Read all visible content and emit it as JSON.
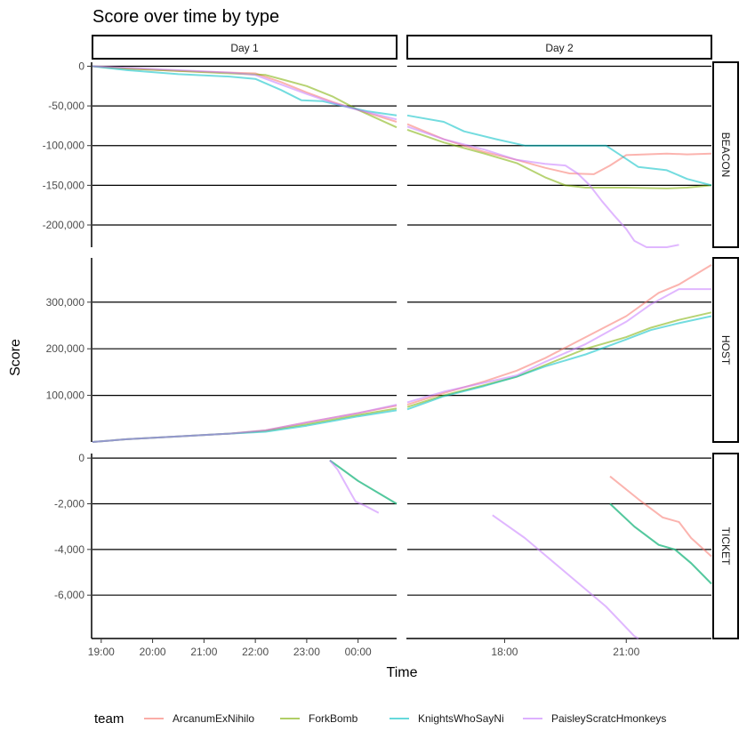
{
  "chart_data": {
    "type": "line",
    "title": "Score over time by type",
    "xlabel": "Time",
    "ylabel": "Score",
    "legend_title": "team",
    "legend_position": "bottom",
    "grid": "major horizontal lines",
    "columns": [
      {
        "label": "Day 1",
        "xlim": [
          18.83,
          24.75
        ],
        "ticks": [
          {
            "v": 19,
            "label": "19:00"
          },
          {
            "v": 20,
            "label": "20:00"
          },
          {
            "v": 21,
            "label": "21:00"
          },
          {
            "v": 22,
            "label": "22:00"
          },
          {
            "v": 23,
            "label": "23:00"
          },
          {
            "v": 24,
            "label": "00:00"
          }
        ]
      },
      {
        "label": "Day 2",
        "xlim": [
          15.6,
          23.1
        ],
        "ticks": [
          {
            "v": 18,
            "label": "18:00"
          },
          {
            "v": 21,
            "label": "21:00"
          }
        ]
      }
    ],
    "rows": [
      {
        "label": "BEACON",
        "ylim": [
          -228000,
          5000
        ],
        "ticks": [
          {
            "v": 0,
            "label": "0"
          },
          {
            "v": -50000,
            "label": "-50,000"
          },
          {
            "v": -100000,
            "label": "-100,000"
          },
          {
            "v": -150000,
            "label": "-150,000"
          },
          {
            "v": -200000,
            "label": "-200,000"
          }
        ]
      },
      {
        "label": "HOST",
        "ylim": [
          0,
          395000
        ],
        "ticks": [
          {
            "v": 100000,
            "label": "100,000"
          },
          {
            "v": 200000,
            "label": "200,000"
          },
          {
            "v": 300000,
            "label": "300,000"
          }
        ]
      },
      {
        "label": "TICKET",
        "ylim": [
          -7900,
          200
        ],
        "ticks": [
          {
            "v": 0,
            "label": "0"
          },
          {
            "v": -2000,
            "label": "-2,000"
          },
          {
            "v": -4000,
            "label": "-4,000"
          },
          {
            "v": -6000,
            "label": "-6,000"
          }
        ]
      }
    ],
    "teams": [
      {
        "name": "ArcanumExNihilo",
        "color": "#F8766D"
      },
      {
        "name": "ForkBomb",
        "color": "#7CAE00"
      },
      {
        "name": "KnightsWhoSayNi",
        "color": "#00BFC4"
      },
      {
        "name": "PaisleyScratcHmonkeys",
        "color": "#C77CFF"
      }
    ],
    "series": [
      {
        "team": "ArcanumExNihilo",
        "row": 0,
        "col": 0,
        "points": [
          [
            18.83,
            0
          ],
          [
            19.5,
            -3000
          ],
          [
            20.5,
            -6000
          ],
          [
            21.5,
            -8000
          ],
          [
            22.0,
            -9000
          ],
          [
            22.5,
            -20000
          ],
          [
            23.0,
            -33000
          ],
          [
            23.5,
            -45000
          ],
          [
            24.0,
            -55000
          ],
          [
            24.75,
            -70000
          ]
        ]
      },
      {
        "team": "ForkBomb",
        "row": 0,
        "col": 0,
        "points": [
          [
            18.83,
            0
          ],
          [
            19.5,
            -3000
          ],
          [
            20.5,
            -6000
          ],
          [
            21.5,
            -9000
          ],
          [
            22.2,
            -11000
          ],
          [
            22.6,
            -18000
          ],
          [
            23.0,
            -25000
          ],
          [
            23.5,
            -38000
          ],
          [
            24.0,
            -55000
          ],
          [
            24.75,
            -77000
          ]
        ]
      },
      {
        "team": "KnightsWhoSayNi",
        "row": 0,
        "col": 0,
        "points": [
          [
            18.83,
            0
          ],
          [
            19.5,
            -5000
          ],
          [
            20.5,
            -10000
          ],
          [
            21.5,
            -13000
          ],
          [
            22.0,
            -16000
          ],
          [
            22.5,
            -30000
          ],
          [
            22.9,
            -43000
          ],
          [
            23.3,
            -44000
          ],
          [
            23.7,
            -50000
          ],
          [
            24.2,
            -57000
          ],
          [
            24.75,
            -62000
          ]
        ]
      },
      {
        "team": "PaisleyScratcHmonkeys",
        "row": 0,
        "col": 0,
        "points": [
          [
            18.83,
            0
          ],
          [
            19.5,
            -2000
          ],
          [
            20.5,
            -5000
          ],
          [
            21.5,
            -8000
          ],
          [
            22.0,
            -11000
          ],
          [
            22.5,
            -23000
          ],
          [
            23.0,
            -35000
          ],
          [
            23.5,
            -46000
          ],
          [
            24.0,
            -55000
          ],
          [
            24.75,
            -67000
          ]
        ]
      },
      {
        "team": "ArcanumExNihilo",
        "row": 0,
        "col": 1,
        "points": [
          [
            15.6,
            -73000
          ],
          [
            16.5,
            -92000
          ],
          [
            17.5,
            -108000
          ],
          [
            18.3,
            -118000
          ],
          [
            19.0,
            -128000
          ],
          [
            19.6,
            -135000
          ],
          [
            20.2,
            -136000
          ],
          [
            20.6,
            -125000
          ],
          [
            21.0,
            -112000
          ],
          [
            22.0,
            -110000
          ],
          [
            22.5,
            -111000
          ],
          [
            23.1,
            -110000
          ]
        ]
      },
      {
        "team": "ForkBomb",
        "row": 0,
        "col": 1,
        "points": [
          [
            15.6,
            -80000
          ],
          [
            16.5,
            -96000
          ],
          [
            17.5,
            -110000
          ],
          [
            18.3,
            -122000
          ],
          [
            19.0,
            -140000
          ],
          [
            19.5,
            -150000
          ],
          [
            20.0,
            -153000
          ],
          [
            21.0,
            -153000
          ],
          [
            22.0,
            -154000
          ],
          [
            22.5,
            -153000
          ],
          [
            23.1,
            -150000
          ]
        ]
      },
      {
        "team": "KnightsWhoSayNi",
        "row": 0,
        "col": 1,
        "points": [
          [
            15.6,
            -62000
          ],
          [
            16.5,
            -70000
          ],
          [
            17.0,
            -82000
          ],
          [
            17.8,
            -92000
          ],
          [
            18.5,
            -100000
          ],
          [
            20.5,
            -100000
          ],
          [
            20.8,
            -110000
          ],
          [
            21.3,
            -127000
          ],
          [
            22.0,
            -131000
          ],
          [
            22.5,
            -142000
          ],
          [
            23.1,
            -150000
          ]
        ]
      },
      {
        "team": "PaisleyScratcHmonkeys",
        "row": 0,
        "col": 1,
        "points": [
          [
            15.6,
            -76000
          ],
          [
            16.5,
            -92000
          ],
          [
            17.5,
            -105000
          ],
          [
            18.3,
            -118000
          ],
          [
            19.0,
            -123000
          ],
          [
            19.5,
            -125000
          ],
          [
            19.8,
            -135000
          ],
          [
            20.1,
            -150000
          ],
          [
            20.4,
            -170000
          ],
          [
            20.7,
            -188000
          ],
          [
            21.0,
            -205000
          ],
          [
            21.2,
            -220000
          ],
          [
            21.5,
            -228000
          ],
          [
            22.0,
            -228000
          ],
          [
            22.3,
            -225000
          ]
        ]
      },
      {
        "team": "ArcanumExNihilo",
        "row": 1,
        "col": 0,
        "points": [
          [
            18.83,
            0
          ],
          [
            19.5,
            6000
          ],
          [
            20.5,
            12000
          ],
          [
            21.5,
            18000
          ],
          [
            22.2,
            25000
          ],
          [
            23.0,
            42000
          ],
          [
            24.0,
            62000
          ],
          [
            24.75,
            78000
          ]
        ]
      },
      {
        "team": "ForkBomb",
        "row": 1,
        "col": 0,
        "points": [
          [
            18.83,
            0
          ],
          [
            19.5,
            6000
          ],
          [
            20.5,
            12000
          ],
          [
            21.5,
            18000
          ],
          [
            22.2,
            24000
          ],
          [
            23.0,
            38000
          ],
          [
            24.0,
            58000
          ],
          [
            24.75,
            72000
          ]
        ]
      },
      {
        "team": "KnightsWhoSayNi",
        "row": 1,
        "col": 0,
        "points": [
          [
            18.83,
            0
          ],
          [
            19.5,
            6000
          ],
          [
            20.5,
            12000
          ],
          [
            21.5,
            18000
          ],
          [
            22.2,
            22000
          ],
          [
            23.0,
            35000
          ],
          [
            24.0,
            55000
          ],
          [
            24.75,
            68000
          ]
        ]
      },
      {
        "team": "PaisleyScratcHmonkeys",
        "row": 1,
        "col": 0,
        "points": [
          [
            18.83,
            0
          ],
          [
            19.5,
            6000
          ],
          [
            20.5,
            12000
          ],
          [
            21.5,
            18000
          ],
          [
            22.2,
            25000
          ],
          [
            23.0,
            42000
          ],
          [
            24.0,
            62000
          ],
          [
            24.75,
            80000
          ]
        ]
      },
      {
        "team": "ArcanumExNihilo",
        "row": 1,
        "col": 1,
        "points": [
          [
            15.6,
            80000
          ],
          [
            16.5,
            105000
          ],
          [
            17.5,
            130000
          ],
          [
            18.3,
            153000
          ],
          [
            19.0,
            180000
          ],
          [
            20.0,
            225000
          ],
          [
            21.0,
            270000
          ],
          [
            21.8,
            320000
          ],
          [
            22.3,
            338000
          ],
          [
            23.1,
            380000
          ]
        ]
      },
      {
        "team": "ForkBomb",
        "row": 1,
        "col": 1,
        "points": [
          [
            15.6,
            75000
          ],
          [
            16.5,
            100000
          ],
          [
            17.5,
            122000
          ],
          [
            18.3,
            140000
          ],
          [
            19.0,
            165000
          ],
          [
            20.0,
            200000
          ],
          [
            21.0,
            225000
          ],
          [
            21.6,
            245000
          ],
          [
            22.3,
            262000
          ],
          [
            23.1,
            278000
          ]
        ]
      },
      {
        "team": "KnightsWhoSayNi",
        "row": 1,
        "col": 1,
        "points": [
          [
            15.6,
            70000
          ],
          [
            16.5,
            98000
          ],
          [
            17.5,
            120000
          ],
          [
            18.3,
            140000
          ],
          [
            19.0,
            162000
          ],
          [
            20.0,
            188000
          ],
          [
            21.0,
            220000
          ],
          [
            21.6,
            240000
          ],
          [
            22.3,
            255000
          ],
          [
            23.1,
            270000
          ]
        ]
      },
      {
        "team": "PaisleyScratcHmonkeys",
        "row": 1,
        "col": 1,
        "points": [
          [
            15.6,
            85000
          ],
          [
            16.5,
            108000
          ],
          [
            17.5,
            127000
          ],
          [
            18.3,
            143000
          ],
          [
            19.0,
            172000
          ],
          [
            20.0,
            210000
          ],
          [
            21.0,
            258000
          ],
          [
            21.6,
            295000
          ],
          [
            22.3,
            328000
          ],
          [
            23.1,
            328000
          ]
        ]
      },
      {
        "team": "ArcanumExNihilo",
        "row": 2,
        "col": 1,
        "points": [
          [
            20.6,
            -800
          ],
          [
            21.3,
            -1800
          ],
          [
            21.9,
            -2600
          ],
          [
            22.3,
            -2800
          ],
          [
            22.6,
            -3500
          ],
          [
            23.1,
            -4300
          ]
        ]
      },
      {
        "team": "ForkBomb",
        "row": 2,
        "col": 1,
        "points": [
          [
            20.6,
            -2000
          ],
          [
            21.2,
            -3000
          ],
          [
            21.8,
            -3800
          ],
          [
            22.2,
            -4000
          ],
          [
            22.6,
            -4600
          ],
          [
            23.1,
            -5500
          ]
        ]
      },
      {
        "team": "KnightsWhoSayNi",
        "row": 2,
        "col": 1,
        "points": [
          [
            20.6,
            -2000
          ],
          [
            21.2,
            -3000
          ],
          [
            21.8,
            -3800
          ],
          [
            22.2,
            -4000
          ],
          [
            22.6,
            -4600
          ],
          [
            23.1,
            -5500
          ]
        ]
      },
      {
        "team": "PaisleyScratcHmonkeys",
        "row": 2,
        "col": 1,
        "points": [
          [
            17.7,
            -2500
          ],
          [
            18.5,
            -3500
          ],
          [
            19.5,
            -5000
          ],
          [
            20.5,
            -6500
          ],
          [
            21.2,
            -7800
          ],
          [
            21.3,
            -7900
          ]
        ]
      },
      {
        "team": "ForkBomb",
        "row": 2,
        "col": 0,
        "points": [
          [
            23.45,
            -100
          ],
          [
            24.0,
            -1000
          ],
          [
            24.75,
            -2000
          ]
        ]
      },
      {
        "team": "KnightsWhoSayNi",
        "row": 2,
        "col": 0,
        "points": [
          [
            23.45,
            -100
          ],
          [
            24.0,
            -1000
          ],
          [
            24.75,
            -2000
          ]
        ]
      },
      {
        "team": "PaisleyScratcHmonkeys",
        "row": 2,
        "col": 0,
        "points": [
          [
            23.45,
            -100
          ],
          [
            23.6,
            -500
          ],
          [
            23.75,
            -1100
          ],
          [
            23.85,
            -1500
          ],
          [
            23.95,
            -1900
          ],
          [
            24.15,
            -2100
          ],
          [
            24.4,
            -2400
          ]
        ]
      }
    ]
  }
}
